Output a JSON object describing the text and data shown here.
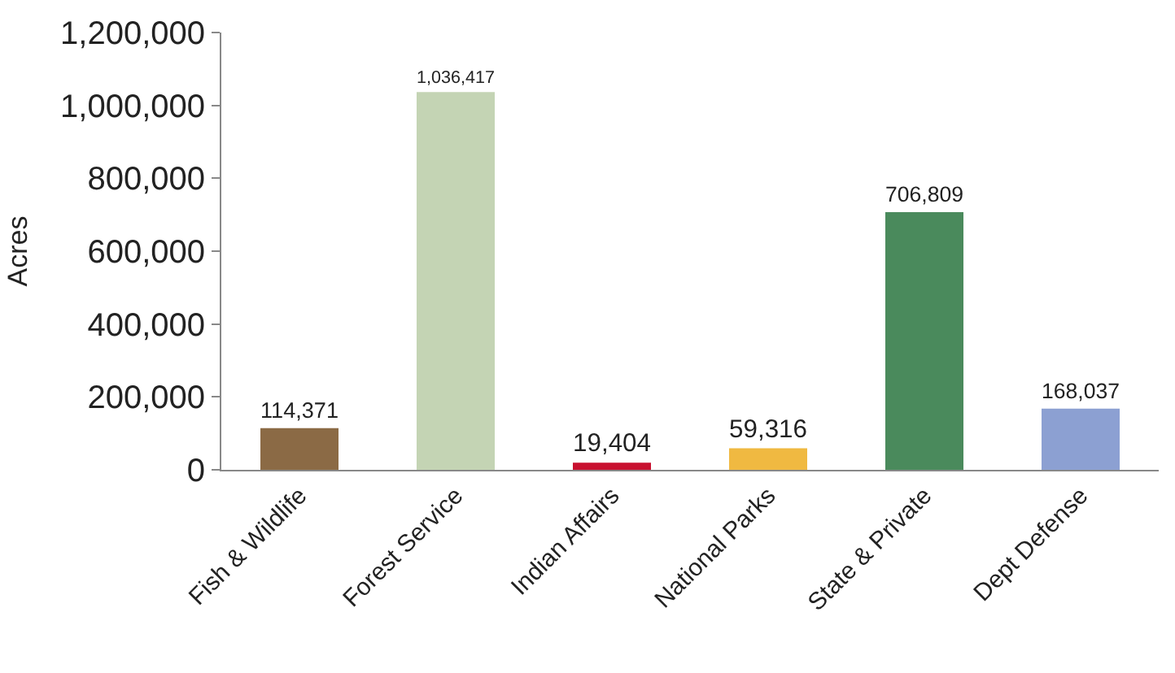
{
  "chart_data": {
    "type": "bar",
    "ylabel": "Acres",
    "categories": [
      "Fish & Wildlife",
      "Forest Service",
      "Indian Affairs",
      "National Parks",
      "State & Private",
      "Dept Defense"
    ],
    "values": [
      114371,
      1036417,
      19404,
      59316,
      706809,
      168037
    ],
    "value_labels": [
      "114,371",
      "1,036,417",
      "19,404",
      "59,316",
      "706,809",
      "168,037"
    ],
    "colors": [
      "#8b6a45",
      "#c4d4b4",
      "#c8102e",
      "#f0b941",
      "#4a8a5c",
      "#8ca0d2"
    ],
    "ylim": [
      0,
      1200000
    ],
    "yticks": [
      0,
      {
        "value": 200000,
        "label": "200,000"
      },
      {
        "value": 400000,
        "label": "400,000"
      },
      {
        "value": 600000,
        "label": "600,000"
      },
      {
        "value": 800000,
        "label": "800,000"
      },
      {
        "value": 1000000,
        "label": "1,000,000"
      },
      {
        "value": 1200000,
        "label": "1,200,000"
      }
    ]
  }
}
